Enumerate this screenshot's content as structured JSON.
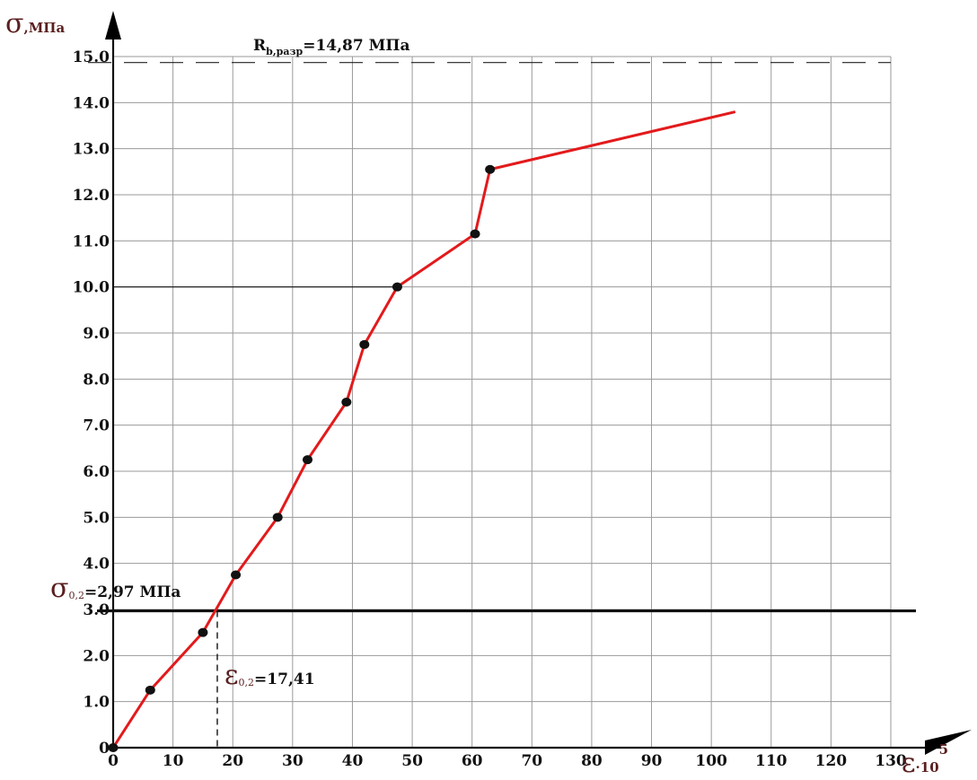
{
  "chart_data": {
    "type": "line",
    "xlim": [
      0,
      130
    ],
    "ylim": [
      0,
      15
    ],
    "x_ticks": [
      0,
      10,
      20,
      30,
      40,
      50,
      60,
      70,
      80,
      90,
      100,
      110,
      120,
      130
    ],
    "x_tick_labels": [
      "0",
      "10",
      "20",
      "30",
      "40",
      "50",
      "60",
      "70",
      "80",
      "90",
      "100",
      "110",
      "120",
      "130"
    ],
    "y_ticks": [
      0,
      1,
      2,
      3,
      4,
      5,
      6,
      7,
      8,
      9,
      10,
      11,
      12,
      13,
      14,
      15
    ],
    "y_tick_labels": [
      "0",
      "1.0",
      "2.0",
      "3.0",
      "4.0",
      "5.0",
      "6.0",
      "7.0",
      "8.0",
      "9.0",
      "10.0",
      "11.0",
      "12.0",
      "13.0",
      "14.0",
      "15.0"
    ],
    "ylabel_symbol": "σ",
    "ylabel_unit": ",МПа",
    "xlabel_symbol": "ε",
    "xlabel_unit": "·10",
    "xlabel_exp": "5",
    "grid": true,
    "series": [
      {
        "color": "#e31a1c",
        "x": [
          0,
          6.2,
          15.0,
          20.5,
          27.5,
          32.5,
          39.0,
          42.0,
          47.5,
          60.5,
          63.0,
          104.0
        ],
        "y": [
          0,
          1.25,
          2.5,
          3.75,
          5.0,
          6.25,
          7.5,
          8.75,
          10.0,
          11.15,
          12.55,
          13.8
        ],
        "markers": [
          true,
          true,
          true,
          true,
          true,
          true,
          true,
          true,
          true,
          true,
          true,
          false
        ]
      }
    ],
    "reference_lines": {
      "strength_line": {
        "y": 14.87,
        "style": "dashed",
        "label_main": "R",
        "label_sub": "b,разр",
        "label_rest": "=14,87 МПа"
      },
      "yield_line": {
        "y": 2.97,
        "style": "solid-thick",
        "label_symbol": "σ",
        "label_sub": "0,2",
        "label_rest": "=2,97 МПа"
      },
      "yield_strain_line": {
        "x": 17.41,
        "style": "dashed",
        "label_symbol": "ε",
        "label_sub": "0,2",
        "label_rest": "=17,41"
      },
      "ten_line": {
        "y": 10.0,
        "x_to": 47.5,
        "style": "solid-thin"
      }
    },
    "colors": {
      "series": "#e31a1c",
      "marker": "#111111",
      "grid": "#9a9a9a",
      "axes": "#111111",
      "label": "#5a1f1f"
    }
  }
}
